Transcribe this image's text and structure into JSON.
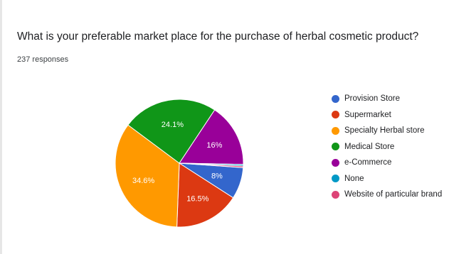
{
  "question": "What is your preferable market place for the purchase of herbal cosmetic product?",
  "responses": "237 responses",
  "chart_data": {
    "type": "pie",
    "title": "What is your preferable market place for the purchase of herbal cosmetic product?",
    "total_responses": 237,
    "legend_position": "right",
    "slices": [
      {
        "label": "Provision Store",
        "value": 8,
        "value_label": "8%",
        "color": "#3366cc"
      },
      {
        "label": "Supermarket",
        "value": 16.5,
        "value_label": "16.5%",
        "color": "#dc3912"
      },
      {
        "label": "Specialty Herbal store",
        "value": 34.6,
        "value_label": "34.6%",
        "color": "#ff9900"
      },
      {
        "label": "Medical Store",
        "value": 24.1,
        "value_label": "24.1%",
        "color": "#109618"
      },
      {
        "label": "e-Commerce",
        "value": 16,
        "value_label": "16%",
        "color": "#990099"
      },
      {
        "label": "None",
        "value": 0.4,
        "value_label": "",
        "color": "#0099c6"
      },
      {
        "label": "Website of particular brand",
        "value": 0.4,
        "value_label": "",
        "color": "#dd4477"
      }
    ]
  }
}
